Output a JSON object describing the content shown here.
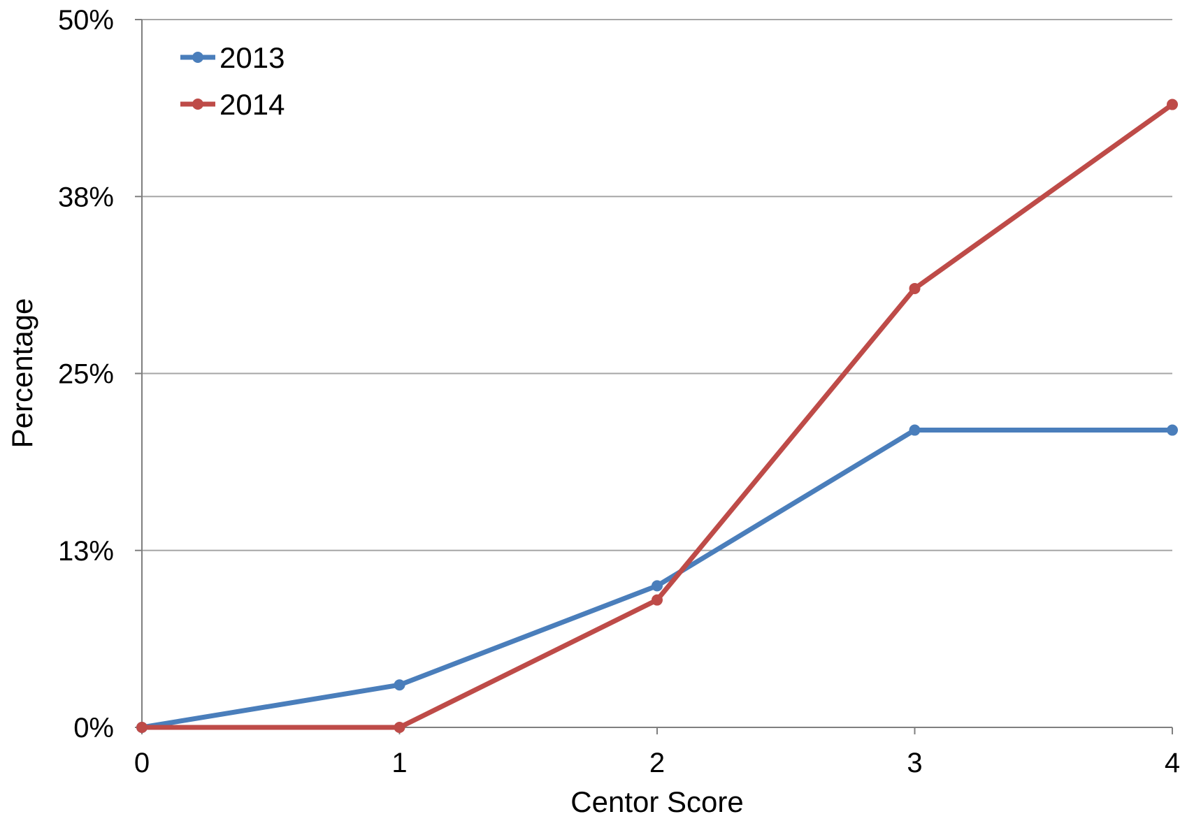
{
  "chart_data": {
    "type": "line",
    "title": "",
    "xlabel": "Centor Score",
    "ylabel": "Percentage",
    "x": [
      0,
      1,
      2,
      3,
      4
    ],
    "xticks": [
      "0",
      "1",
      "2",
      "3",
      "4"
    ],
    "xlim": [
      0,
      4
    ],
    "ylim": [
      0,
      50
    ],
    "yticks": [
      0,
      12.5,
      25,
      37.5,
      50
    ],
    "ytick_labels": [
      "0%",
      "13%",
      "25%",
      "38%",
      "50%"
    ],
    "grid": "horizontal",
    "legend_position": "top-left",
    "series": [
      {
        "name": "2013",
        "color": "#4a7ebb",
        "values": [
          0,
          3,
          10,
          21,
          21
        ]
      },
      {
        "name": "2014",
        "color": "#be4b48",
        "values": [
          0,
          0,
          9,
          31,
          44
        ]
      }
    ]
  }
}
